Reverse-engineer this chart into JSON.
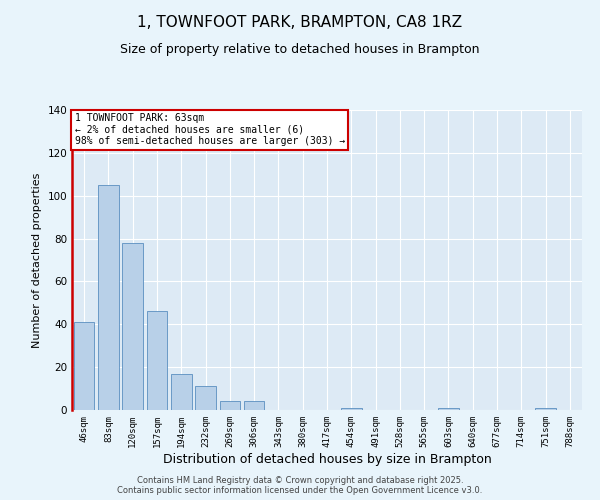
{
  "title": "1, TOWNFOOT PARK, BRAMPTON, CA8 1RZ",
  "subtitle": "Size of property relative to detached houses in Brampton",
  "xlabel": "Distribution of detached houses by size in Brampton",
  "ylabel": "Number of detached properties",
  "categories": [
    "46sqm",
    "83sqm",
    "120sqm",
    "157sqm",
    "194sqm",
    "232sqm",
    "269sqm",
    "306sqm",
    "343sqm",
    "380sqm",
    "417sqm",
    "454sqm",
    "491sqm",
    "528sqm",
    "565sqm",
    "603sqm",
    "640sqm",
    "677sqm",
    "714sqm",
    "751sqm",
    "788sqm"
  ],
  "values": [
    41,
    105,
    78,
    46,
    17,
    11,
    4,
    4,
    0,
    0,
    0,
    1,
    0,
    0,
    0,
    1,
    0,
    0,
    0,
    1,
    0
  ],
  "bar_color": "#b8d0e8",
  "bar_edge_color": "#5a8fc0",
  "ylim": [
    0,
    140
  ],
  "yticks": [
    0,
    20,
    40,
    60,
    80,
    100,
    120,
    140
  ],
  "annotation_box_text": "1 TOWNFOOT PARK: 63sqm\n← 2% of detached houses are smaller (6)\n98% of semi-detached houses are larger (303) →",
  "vline_color": "#cc0000",
  "box_edge_color": "#cc0000",
  "background_color": "#e8f4fb",
  "plot_bg_color": "#ddeaf5",
  "footer_line1": "Contains HM Land Registry data © Crown copyright and database right 2025.",
  "footer_line2": "Contains public sector information licensed under the Open Government Licence v3.0.",
  "title_fontsize": 11,
  "subtitle_fontsize": 9,
  "tick_fontsize": 6.5,
  "ylabel_fontsize": 8,
  "xlabel_fontsize": 9,
  "footer_fontsize": 6
}
